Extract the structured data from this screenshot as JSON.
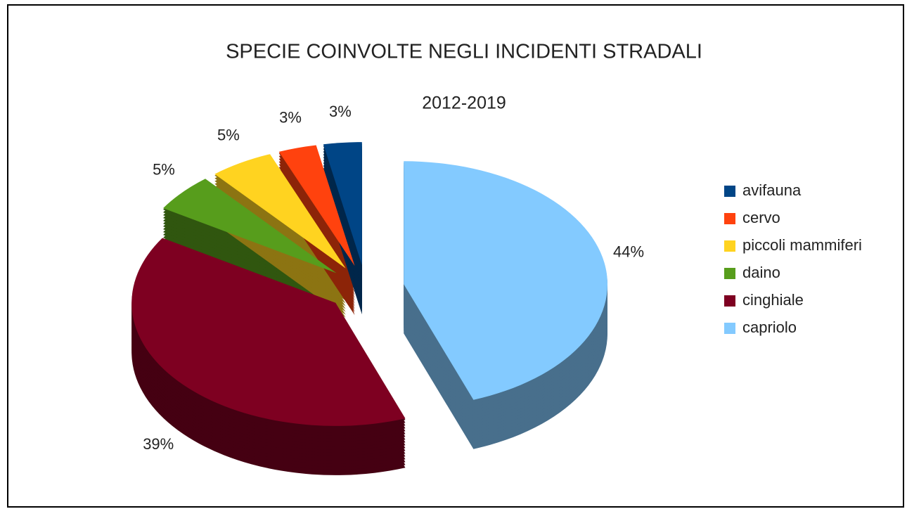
{
  "chart_data": {
    "type": "pie",
    "title": "SPECIE COINVOLTE NEGLI INCIDENTI STRADALI",
    "subtitle": "2012-2019",
    "categories": [
      "avifauna",
      "cervo",
      "piccoli mammiferi",
      "daino",
      "cinghiale",
      "capriolo"
    ],
    "values": [
      3,
      3,
      5,
      5,
      39,
      44
    ],
    "value_labels": [
      "3%",
      "3%",
      "5%",
      "5%",
      "39%",
      "44%"
    ],
    "colors": [
      "#004586",
      "#ff420e",
      "#ffd320",
      "#579d1c",
      "#7e0021",
      "#83caff"
    ],
    "legend": "right"
  }
}
